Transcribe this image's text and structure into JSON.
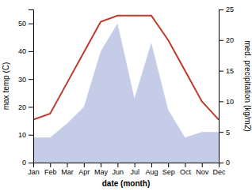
{
  "chart_data": {
    "type": "line",
    "xlabel": "date (month)",
    "ylabel": "max temp (C)",
    "y2label": "med. precipitation (kg/m2)",
    "categories": [
      "Jan",
      "Feb",
      "Mar",
      "Apr",
      "May",
      "Jun",
      "Jul",
      "Aug",
      "Sep",
      "Oct",
      "Nov",
      "Dec"
    ],
    "series": [
      {
        "type": "area",
        "color": "#c5cce8",
        "values": [
          9,
          9,
          14,
          20,
          40,
          50,
          23,
          43,
          19,
          9,
          11,
          11
        ]
      },
      {
        "type": "line",
        "color": "#c0392b",
        "axis": "y2",
        "values": [
          7,
          8,
          13,
          18,
          23,
          24,
          24,
          24,
          20,
          15,
          10,
          7
        ]
      }
    ],
    "ylim": [
      0,
      55
    ],
    "yticks": [
      0,
      10,
      20,
      30,
      40,
      50
    ],
    "y2lim": [
      0,
      25
    ],
    "y2ticks": [
      0,
      5,
      10,
      15,
      20,
      25
    ],
    "grid": false
  }
}
